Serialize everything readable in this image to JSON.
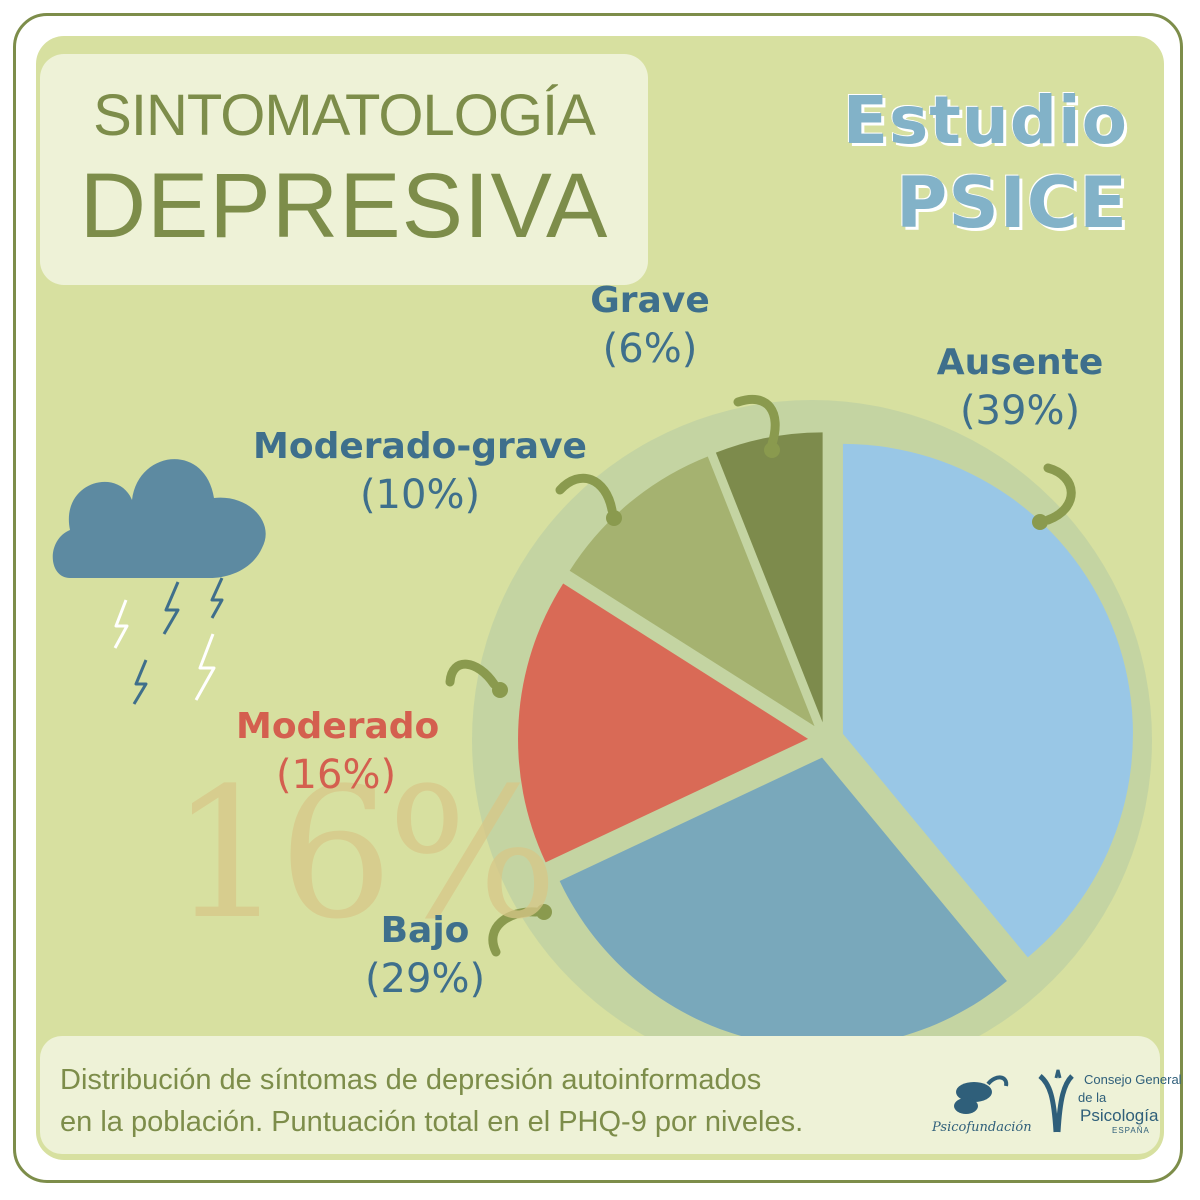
{
  "title": {
    "line1": "SINTOMATOLOGÍA",
    "line2": "DEPRESIVA"
  },
  "study": {
    "line1": "Estudio",
    "line2": "PSICE"
  },
  "watermark": "16%",
  "caption": {
    "line1": "Distribución de síntomas de depresión autoinformados",
    "line2": "en la población. Puntuación total en el PHQ-9 por niveles."
  },
  "logos": {
    "psicofundacion": "Psicofundación",
    "consejo_line1": "Consejo General",
    "consejo_line2": "de la",
    "consejo_line3": "Psicología",
    "consejo_line4": "ESPAÑA"
  },
  "colors": {
    "frame": "#7d8d4a",
    "background": "#d7e0a0",
    "ring": "#c2d3a2",
    "ausente": "#99c7e6",
    "bajo": "#79a8bb",
    "moderado": "#d96a56",
    "moderado_grave": "#a5b270",
    "grave": "#7d8b4c",
    "label_blue": "#3e6f8c",
    "label_red": "#d45f4f"
  },
  "icons": {
    "cloud": "rain-cloud-icon",
    "bolts": "lightning-bolt-icon"
  },
  "chart_data": {
    "type": "pie",
    "categories": [
      "Ausente",
      "Bajo",
      "Moderado",
      "Moderado-grave",
      "Grave"
    ],
    "values": [
      39,
      29,
      16,
      10,
      6
    ],
    "labels": [
      "(39%)",
      "(29%)",
      "(16%)",
      "(10%)",
      "(6%)"
    ],
    "title": ""
  }
}
